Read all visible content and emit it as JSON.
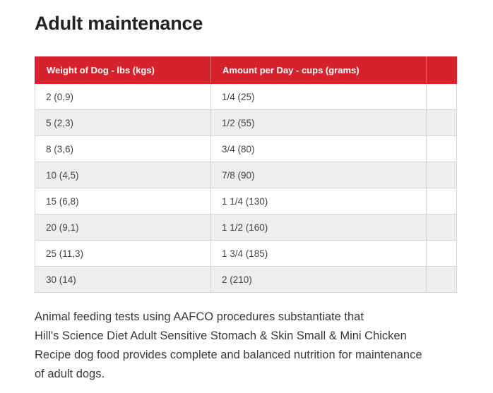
{
  "section": {
    "title": "Adult maintenance"
  },
  "table": {
    "headers": {
      "weight": "Weight of Dog - lbs (kgs)",
      "amount": "Amount per Day - cups (grams)",
      "extra": ""
    },
    "rows": [
      {
        "weight": "2 (0,9)",
        "amount": "1/4 (25)"
      },
      {
        "weight": "5 (2,3)",
        "amount": "1/2 (55)"
      },
      {
        "weight": "8 (3,6)",
        "amount": "3/4 (80)"
      },
      {
        "weight": "10 (4,5)",
        "amount": "7/8 (90)"
      },
      {
        "weight": "15 (6,8)",
        "amount": "1 1/4 (130)"
      },
      {
        "weight": "20 (9,1)",
        "amount": "1 1/2 (160)"
      },
      {
        "weight": "25 (11,3)",
        "amount": "1 3/4 (185)"
      },
      {
        "weight": "30 (14)",
        "amount": "2 (210)"
      }
    ]
  },
  "note": {
    "line1": "Animal feeding tests using AAFCO procedures substantiate that",
    "line2": "Hill's Science Diet Adult Sensitive Stomach & Skin Small & Mini Chicken",
    "line3": "Recipe dog food provides complete and balanced nutrition for maintenance",
    "line4": "of adult dogs."
  },
  "colors": {
    "header_bg": "#d6222d",
    "header_text": "#ffffff",
    "row_alt_bg": "#eeeeee",
    "border": "#d4d4d4"
  }
}
